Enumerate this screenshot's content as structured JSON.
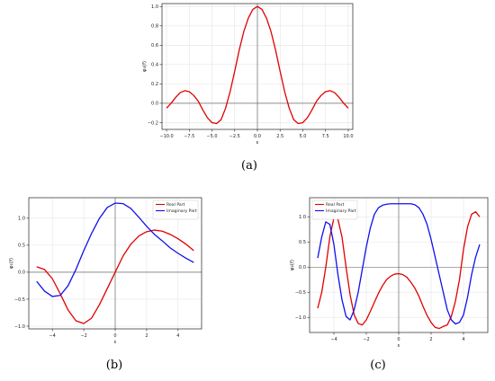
{
  "captions": [
    "(a)",
    "(b)",
    "(c)"
  ],
  "chart_data": [
    {
      "type": "line",
      "panel": "a",
      "title": "",
      "xlabel": "ε",
      "ylabel": "φ₀(f)",
      "xlim": [
        -10.5,
        10.5
      ],
      "ylim": [
        -0.27,
        1.03
      ],
      "xticks": [
        -10.0,
        -7.5,
        -5.0,
        -2.5,
        0.0,
        2.5,
        5.0,
        7.5,
        10.0
      ],
      "xtick_labels": [
        "−10.0",
        "−7.5",
        "−5.0",
        "−2.5",
        "0.0",
        "2.5",
        "5.0",
        "7.5",
        "10.0"
      ],
      "yticks": [
        -0.2,
        0.0,
        0.2,
        0.4,
        0.6,
        0.8,
        1.0
      ],
      "ytick_labels": [
        "−0.2",
        "0.0",
        "0.2",
        "0.4",
        "0.6",
        "0.8",
        "1.0"
      ],
      "grid": true,
      "legend": [],
      "series": [
        {
          "color": "#e00000",
          "x": [
            -10,
            -9.5,
            -9,
            -8.5,
            -8,
            -7.5,
            -7,
            -6.5,
            -6,
            -5.5,
            -5,
            -4.5,
            -4,
            -3.5,
            -3,
            -2.5,
            -2,
            -1.5,
            -1,
            -0.5,
            0,
            0.5,
            1,
            1.5,
            2,
            2.5,
            3,
            3.5,
            4,
            4.5,
            5,
            5.5,
            6,
            6.5,
            7,
            7.5,
            8,
            8.5,
            9,
            9.5,
            10
          ],
          "y": [
            -0.05,
            0.0,
            0.06,
            0.11,
            0.13,
            0.12,
            0.08,
            0.02,
            -0.07,
            -0.15,
            -0.2,
            -0.21,
            -0.17,
            -0.05,
            0.12,
            0.33,
            0.55,
            0.74,
            0.88,
            0.97,
            1.0,
            0.97,
            0.88,
            0.74,
            0.55,
            0.33,
            0.12,
            -0.05,
            -0.17,
            -0.21,
            -0.2,
            -0.15,
            -0.07,
            0.02,
            0.08,
            0.12,
            0.13,
            0.11,
            0.06,
            0.0,
            -0.05
          ]
        }
      ]
    },
    {
      "type": "line",
      "panel": "b",
      "title": "",
      "xlabel": "ε",
      "ylabel": "φ₁(f)",
      "xlim": [
        -5.5,
        5.5
      ],
      "ylim": [
        -1.05,
        1.38
      ],
      "xticks": [
        -4,
        -2,
        0,
        2,
        4
      ],
      "xtick_labels": [
        "−4",
        "−2",
        "0",
        "2",
        "4"
      ],
      "yticks": [
        -1.0,
        -0.5,
        0.0,
        0.5,
        1.0
      ],
      "ytick_labels": [
        "−1.0",
        "−0.5",
        "0.0",
        "0.5",
        "1.0"
      ],
      "grid": true,
      "legend": [
        "Real Part",
        "Imaginary Part"
      ],
      "legend_position": "top-right",
      "series": [
        {
          "name": "Real Part",
          "color": "#e00000",
          "x": [
            -5,
            -4.5,
            -4,
            -3.5,
            -3,
            -2.5,
            -2,
            -1.5,
            -1,
            -0.5,
            0,
            0.5,
            1,
            1.5,
            2,
            2.5,
            3,
            3.5,
            4,
            4.5,
            5
          ],
          "y": [
            0.1,
            0.05,
            -0.12,
            -0.4,
            -0.7,
            -0.9,
            -0.95,
            -0.85,
            -0.6,
            -0.3,
            0.0,
            0.3,
            0.52,
            0.67,
            0.75,
            0.78,
            0.76,
            0.7,
            0.62,
            0.52,
            0.4
          ]
        },
        {
          "name": "Imaginary Part",
          "color": "#1010ee",
          "x": [
            -5,
            -4.5,
            -4,
            -3.5,
            -3,
            -2.5,
            -2,
            -1.5,
            -1,
            -0.5,
            0,
            0.5,
            1,
            1.5,
            2,
            2.5,
            3,
            3.5,
            4,
            4.5,
            5
          ],
          "y": [
            -0.17,
            -0.35,
            -0.45,
            -0.43,
            -0.25,
            0.05,
            0.4,
            0.72,
            1.0,
            1.2,
            1.28,
            1.27,
            1.18,
            1.02,
            0.85,
            0.7,
            0.58,
            0.45,
            0.35,
            0.26,
            0.18
          ]
        }
      ]
    },
    {
      "type": "line",
      "panel": "c",
      "title": "",
      "xlabel": "ε",
      "ylabel": "φ₂(f)",
      "xlim": [
        -5.5,
        5.5
      ],
      "ylim": [
        -1.3,
        1.38
      ],
      "xticks": [
        -4,
        -2,
        0,
        2,
        4
      ],
      "xtick_labels": [
        "−4",
        "−2",
        "0",
        "2",
        "4"
      ],
      "yticks": [
        -1.0,
        -0.5,
        0.0,
        0.5,
        1.0
      ],
      "ytick_labels": [
        "−1.0",
        "−0.5",
        "0.0",
        "0.5",
        "1.0"
      ],
      "grid": true,
      "legend": [
        "Real Part",
        "Imaginary Part"
      ],
      "legend_position": "top-left",
      "series": [
        {
          "name": "Real Part",
          "color": "#e00000",
          "x": [
            -5,
            -4.75,
            -4.5,
            -4.25,
            -4,
            -3.75,
            -3.5,
            -3.25,
            -3,
            -2.75,
            -2.5,
            -2.25,
            -2,
            -1.75,
            -1.5,
            -1.25,
            -1,
            -0.75,
            -0.5,
            -0.25,
            0,
            0.25,
            0.5,
            0.75,
            1,
            1.25,
            1.5,
            1.75,
            2,
            2.25,
            2.5,
            2.75,
            3,
            3.25,
            3.5,
            3.75,
            4,
            4.25,
            4.5,
            4.75,
            5
          ],
          "y": [
            -0.82,
            -0.5,
            0.0,
            0.6,
            0.98,
            0.95,
            0.6,
            0.0,
            -0.55,
            -0.95,
            -1.12,
            -1.15,
            -1.05,
            -0.88,
            -0.7,
            -0.52,
            -0.37,
            -0.25,
            -0.18,
            -0.14,
            -0.13,
            -0.15,
            -0.2,
            -0.3,
            -0.42,
            -0.58,
            -0.78,
            -0.96,
            -1.1,
            -1.2,
            -1.22,
            -1.18,
            -1.15,
            -0.98,
            -0.68,
            -0.25,
            0.35,
            0.8,
            1.05,
            1.1,
            1.0
          ]
        },
        {
          "name": "Imaginary Part",
          "color": "#1010ee",
          "x": [
            -5,
            -4.75,
            -4.5,
            -4.25,
            -4,
            -3.75,
            -3.5,
            -3.25,
            -3,
            -2.75,
            -2.5,
            -2.25,
            -2,
            -1.75,
            -1.5,
            -1.25,
            -1,
            -0.75,
            -0.5,
            -0.25,
            0,
            0.25,
            0.5,
            0.75,
            1,
            1.25,
            1.5,
            1.75,
            2,
            2.25,
            2.5,
            2.75,
            3,
            3.25,
            3.5,
            3.75,
            4,
            4.25,
            4.5,
            4.75,
            5
          ],
          "y": [
            0.18,
            0.6,
            0.9,
            0.85,
            0.45,
            -0.15,
            -0.65,
            -0.98,
            -1.05,
            -0.85,
            -0.5,
            -0.05,
            0.4,
            0.78,
            1.05,
            1.18,
            1.23,
            1.25,
            1.26,
            1.26,
            1.26,
            1.26,
            1.26,
            1.26,
            1.24,
            1.18,
            1.05,
            0.85,
            0.55,
            0.2,
            -0.15,
            -0.5,
            -0.85,
            -1.05,
            -1.13,
            -1.1,
            -0.95,
            -0.6,
            -0.15,
            0.2,
            0.45
          ]
        }
      ]
    }
  ]
}
